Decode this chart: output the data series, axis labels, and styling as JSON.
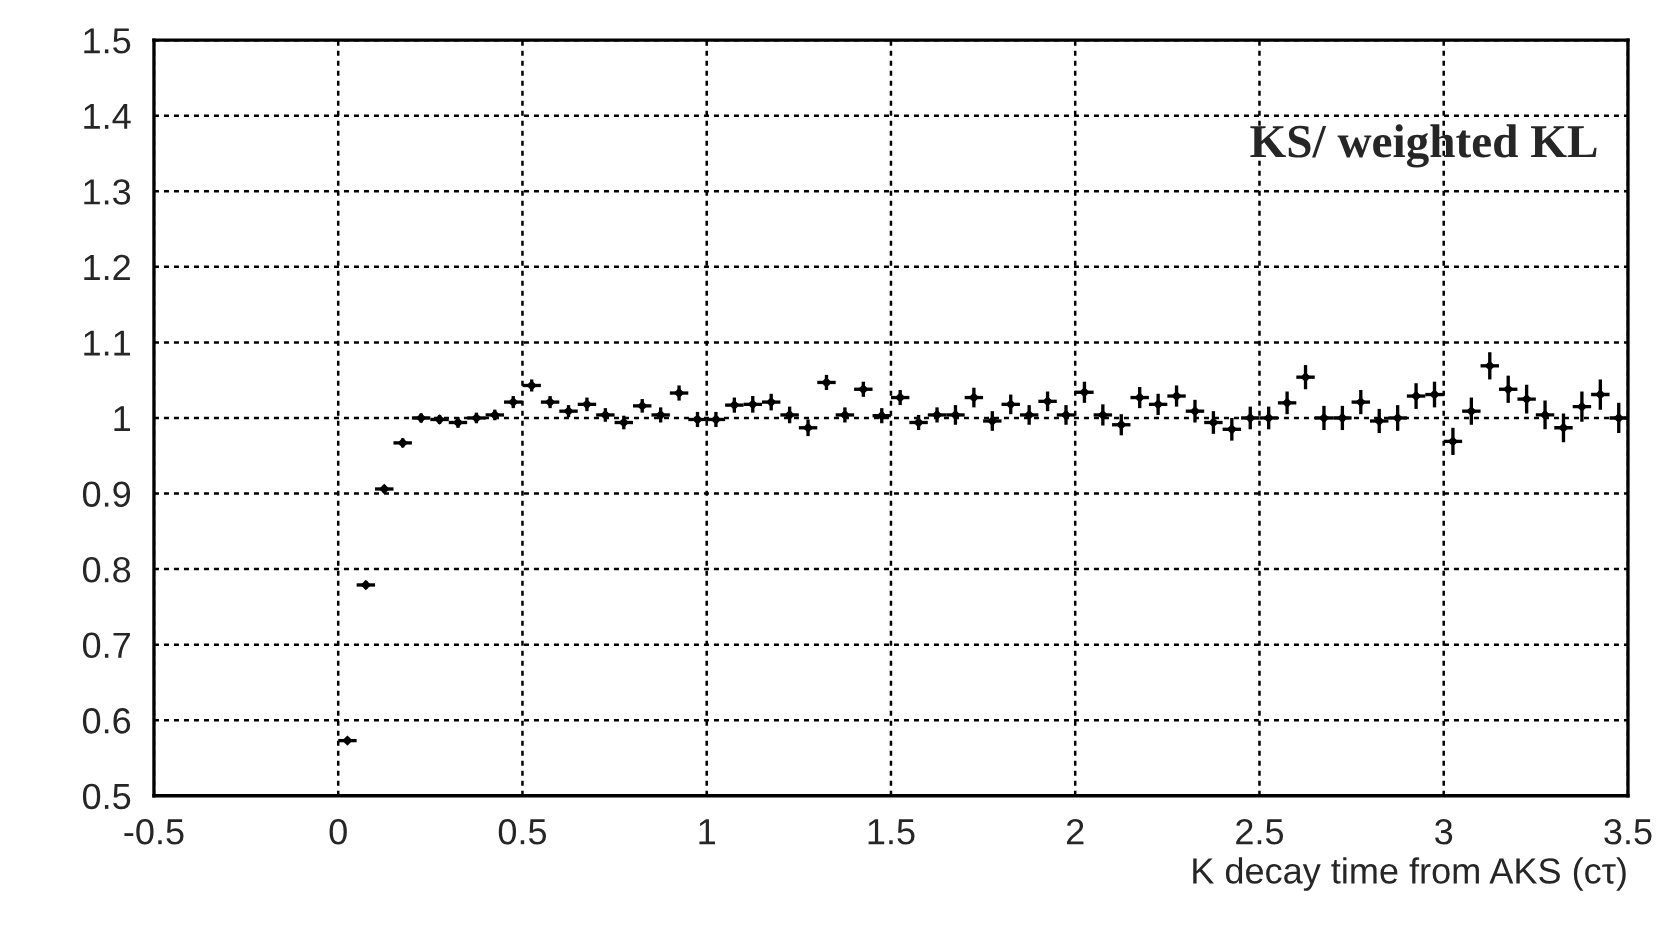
{
  "chart_data": {
    "type": "scatter",
    "xlabel": "K decay time from AKS (cτ)",
    "annotations": [
      "KS/ weighted KL"
    ],
    "series": [
      {
        "color": "#000000",
        "x": [
          0.025,
          0.075,
          0.125,
          0.175,
          0.225,
          0.275,
          0.325,
          0.375,
          0.425,
          0.475,
          0.525,
          0.575,
          0.625,
          0.675,
          0.725,
          0.775,
          0.825,
          0.875,
          0.925,
          0.975,
          1.025,
          1.075,
          1.125,
          1.175,
          1.225,
          1.275,
          1.325,
          1.375,
          1.425,
          1.475,
          1.525,
          1.575,
          1.625,
          1.675,
          1.725,
          1.775,
          1.825,
          1.875,
          1.925,
          1.975,
          2.025,
          2.075,
          2.125,
          2.175,
          2.225,
          2.275,
          2.325,
          2.375,
          2.425,
          2.475,
          2.525,
          2.575,
          2.625,
          2.675,
          2.725,
          2.775,
          2.825,
          2.875,
          2.925,
          2.975,
          3.025,
          3.075,
          3.125,
          3.175,
          3.225,
          3.275,
          3.325,
          3.375,
          3.425,
          3.475
        ],
        "values": [
          0.573,
          0.779,
          0.906,
          0.967,
          1.0,
          0.998,
          0.994,
          1.0,
          1.004,
          1.021,
          1.043,
          1.021,
          1.009,
          1.018,
          1.004,
          0.994,
          1.016,
          1.004,
          1.033,
          0.998,
          0.998,
          1.017,
          1.018,
          1.021,
          1.004,
          0.987,
          1.047,
          1.004,
          1.038,
          1.003,
          1.027,
          0.994,
          1.004,
          1.004,
          1.027,
          0.996,
          1.018,
          1.004,
          1.022,
          1.004,
          1.034,
          1.004,
          0.991,
          1.027,
          1.018,
          1.029,
          1.009,
          0.994,
          0.985,
          1.0,
          1.0,
          1.02,
          1.054,
          1.0,
          1.0,
          1.021,
          0.996,
          1.0,
          1.029,
          1.031,
          0.969,
          1.009,
          1.069,
          1.038,
          1.025,
          1.004,
          0.987,
          1.015,
          1.031,
          1.0
        ],
        "errors": [
          0.004,
          0.005,
          0.005,
          0.006,
          0.006,
          0.006,
          0.007,
          0.007,
          0.007,
          0.008,
          0.008,
          0.008,
          0.008,
          0.009,
          0.009,
          0.009,
          0.009,
          0.01,
          0.01,
          0.01,
          0.01,
          0.01,
          0.011,
          0.011,
          0.011,
          0.011,
          0.01,
          0.01,
          0.01,
          0.01,
          0.01,
          0.01,
          0.01,
          0.013,
          0.013,
          0.013,
          0.013,
          0.013,
          0.013,
          0.013,
          0.014,
          0.014,
          0.014,
          0.014,
          0.014,
          0.014,
          0.015,
          0.015,
          0.015,
          0.015,
          0.015,
          0.015,
          0.016,
          0.016,
          0.016,
          0.016,
          0.016,
          0.017,
          0.017,
          0.017,
          0.018,
          0.018,
          0.018,
          0.018,
          0.019,
          0.019,
          0.019,
          0.02,
          0.02,
          0.02
        ],
        "xerrors": [
          0.025,
          0.025,
          0.025,
          0.025,
          0.025,
          0.025,
          0.025,
          0.025,
          0.025,
          0.025,
          0.025,
          0.025,
          0.025,
          0.025,
          0.025,
          0.025,
          0.025,
          0.025,
          0.025,
          0.025,
          0.025,
          0.025,
          0.025,
          0.025,
          0.025,
          0.025,
          0.025,
          0.025,
          0.025,
          0.025,
          0.025,
          0.025,
          0.025,
          0.025,
          0.025,
          0.025,
          0.025,
          0.025,
          0.025,
          0.025,
          0.025,
          0.025,
          0.025,
          0.025,
          0.025,
          0.025,
          0.025,
          0.025,
          0.025,
          0.025,
          0.025,
          0.025,
          0.025,
          0.025,
          0.025,
          0.025,
          0.025,
          0.025,
          0.025,
          0.025,
          0.025,
          0.025,
          0.025,
          0.025,
          0.025,
          0.025,
          0.025,
          0.025,
          0.025,
          0.025
        ]
      }
    ],
    "xlim": [
      -0.5,
      3.5
    ],
    "ylim": [
      0.5,
      1.5
    ],
    "xticks": [
      -0.5,
      0,
      0.5,
      1,
      1.5,
      2,
      2.5,
      3,
      3.5
    ],
    "yticks": [
      0.5,
      0.6,
      0.7,
      0.8,
      0.9,
      1,
      1.1,
      1.2,
      1.3,
      1.4,
      1.5
    ],
    "grid": true,
    "marker": "diamond"
  }
}
